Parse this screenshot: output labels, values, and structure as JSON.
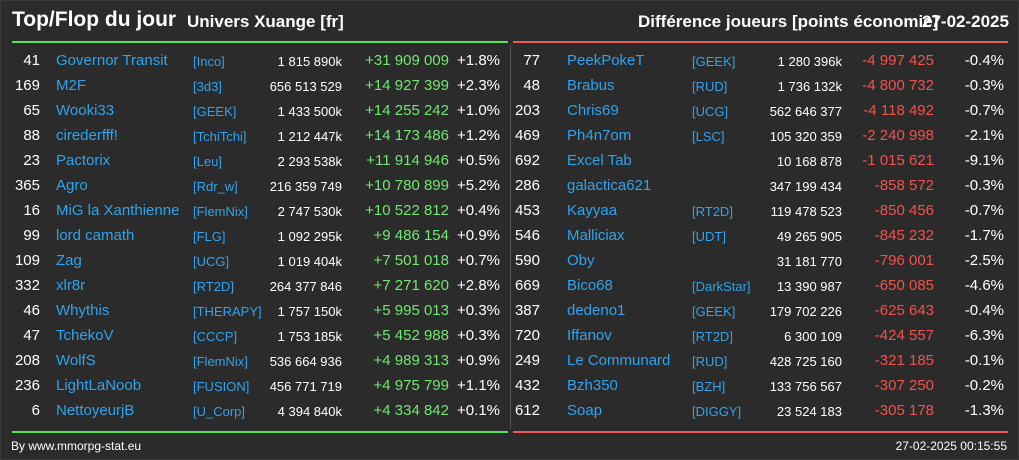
{
  "header": {
    "title": "Top/Flop du jour",
    "universe": "Univers Xuange [fr]",
    "right_title": "Différence joueurs [points économie]",
    "date": "27-02-2025"
  },
  "top": [
    {
      "rank": "41",
      "name": "Governor Transit",
      "alliance": "[Inco]",
      "points": "1 815 890k",
      "diff": "+31 909 009",
      "pct": "+1.8%"
    },
    {
      "rank": "169",
      "name": "M2F",
      "alliance": "[3d3]",
      "points": "656 513 529",
      "diff": "+14 927 399",
      "pct": "+2.3%"
    },
    {
      "rank": "65",
      "name": "Wooki33",
      "alliance": "[GEEK]",
      "points": "1 433 500k",
      "diff": "+14 255 242",
      "pct": "+1.0%"
    },
    {
      "rank": "88",
      "name": "cirederfff!",
      "alliance": "[TchiTchi]",
      "points": "1 212 447k",
      "diff": "+14 173 486",
      "pct": "+1.2%"
    },
    {
      "rank": "23",
      "name": "Pactorix",
      "alliance": "[Leu]",
      "points": "2 293 538k",
      "diff": "+11 914 946",
      "pct": "+0.5%"
    },
    {
      "rank": "365",
      "name": "Agro",
      "alliance": "[Rdr_w]",
      "points": "216 359 749",
      "diff": "+10 780 899",
      "pct": "+5.2%"
    },
    {
      "rank": "16",
      "name": "MiG la Xanthienne",
      "alliance": "[FlemNix]",
      "points": "2 747 530k",
      "diff": "+10 522 812",
      "pct": "+0.4%"
    },
    {
      "rank": "99",
      "name": "lord camath",
      "alliance": "[FLG]",
      "points": "1 092 295k",
      "diff": "+9 486 154",
      "pct": "+0.9%"
    },
    {
      "rank": "109",
      "name": "Zag",
      "alliance": "[UCG]",
      "points": "1 019 404k",
      "diff": "+7 501 018",
      "pct": "+0.7%"
    },
    {
      "rank": "332",
      "name": "xlr8r",
      "alliance": "[RT2D]",
      "points": "264 377 846",
      "diff": "+7 271 620",
      "pct": "+2.8%"
    },
    {
      "rank": "46",
      "name": "Whythis",
      "alliance": "[THERAPY]",
      "points": "1 757 150k",
      "diff": "+5 995 013",
      "pct": "+0.3%"
    },
    {
      "rank": "47",
      "name": "TchekoV",
      "alliance": "[CCCP]",
      "points": "1 753 185k",
      "diff": "+5 452 988",
      "pct": "+0.3%"
    },
    {
      "rank": "208",
      "name": "WolfS",
      "alliance": "[FlemNix]",
      "points": "536 664 936",
      "diff": "+4 989 313",
      "pct": "+0.9%"
    },
    {
      "rank": "236",
      "name": "LightLaNoob",
      "alliance": "[FUSION]",
      "points": "456 771 719",
      "diff": "+4 975 799",
      "pct": "+1.1%"
    },
    {
      "rank": "6",
      "name": "NettoyeurjB",
      "alliance": "[U_Corp]",
      "points": "4 394 840k",
      "diff": "+4 334 842",
      "pct": "+0.1%"
    }
  ],
  "flop": [
    {
      "rank": "77",
      "name": "PeekPokeT",
      "alliance": "[GEEK]",
      "points": "1 280 396k",
      "diff": "-4 997 425",
      "pct": "-0.4%"
    },
    {
      "rank": "48",
      "name": "Brabus",
      "alliance": "[RUD]",
      "points": "1 736 132k",
      "diff": "-4 800 732",
      "pct": "-0.3%"
    },
    {
      "rank": "203",
      "name": "Chris69",
      "alliance": "[UCG]",
      "points": "562 646 377",
      "diff": "-4 118 492",
      "pct": "-0.7%"
    },
    {
      "rank": "469",
      "name": "Ph4n7om",
      "alliance": "[LSC]",
      "points": "105 320 359",
      "diff": "-2 240 998",
      "pct": "-2.1%"
    },
    {
      "rank": "692",
      "name": "Excel Tab",
      "alliance": "",
      "points": "10 168 878",
      "diff": "-1 015 621",
      "pct": "-9.1%"
    },
    {
      "rank": "286",
      "name": "galactica621",
      "alliance": "",
      "points": "347 199 434",
      "diff": "-858 572",
      "pct": "-0.3%"
    },
    {
      "rank": "453",
      "name": "Kayyaa",
      "alliance": "[RT2D]",
      "points": "119 478 523",
      "diff": "-850 456",
      "pct": "-0.7%"
    },
    {
      "rank": "546",
      "name": "Malliciax",
      "alliance": "[UDT]",
      "points": "49 265 905",
      "diff": "-845 232",
      "pct": "-1.7%"
    },
    {
      "rank": "590",
      "name": "Oby",
      "alliance": "",
      "points": "31 181 770",
      "diff": "-796 001",
      "pct": "-2.5%"
    },
    {
      "rank": "669",
      "name": "Bico68",
      "alliance": "[DarkStar]",
      "points": "13 390 987",
      "diff": "-650 085",
      "pct": "-4.6%"
    },
    {
      "rank": "387",
      "name": "dedeno1",
      "alliance": "[GEEK]",
      "points": "179 702 226",
      "diff": "-625 643",
      "pct": "-0.4%"
    },
    {
      "rank": "720",
      "name": "Iffanov",
      "alliance": "[RT2D]",
      "points": "6 300 109",
      "diff": "-424 557",
      "pct": "-6.3%"
    },
    {
      "rank": "249",
      "name": "Le Communard",
      "alliance": "[RUD]",
      "points": "428 725 160",
      "diff": "-321 185",
      "pct": "-0.1%"
    },
    {
      "rank": "432",
      "name": "Bzh350",
      "alliance": "[BZH]",
      "points": "133 756 567",
      "diff": "-307 250",
      "pct": "-0.2%"
    },
    {
      "rank": "612",
      "name": "Soap",
      "alliance": "[DIGGY]",
      "points": "23 524 183",
      "diff": "-305 178",
      "pct": "-1.3%"
    }
  ],
  "footer": {
    "credit": "By www.mmorpg-stat.eu",
    "timestamp": "27-02-2025 00:15:55"
  },
  "colors": {
    "gain": "#6fe86f",
    "loss": "#f0524c",
    "link": "#2ea4ee",
    "green_bar": "#56e256",
    "red_bar": "#ee5a55"
  }
}
